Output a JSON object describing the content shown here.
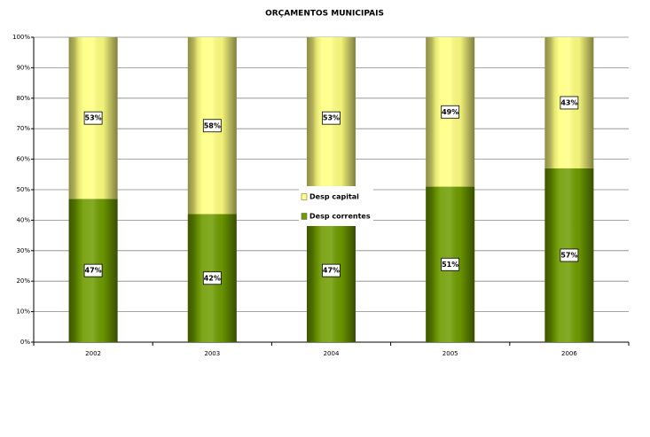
{
  "chart_data": {
    "type": "stacked_bar_100",
    "title": "ORÇAMENTOS MUNICIPAIS",
    "categories": [
      "2002",
      "2003",
      "2004",
      "2005",
      "2006"
    ],
    "series": [
      {
        "name": "Desp correntes",
        "color": "#6f9c00",
        "values": [
          47,
          42,
          47,
          51,
          57
        ],
        "value_labels": [
          "47%",
          "42%",
          "47%",
          "51%",
          "57%"
        ]
      },
      {
        "name": "Desp capital",
        "color": "#ffff80",
        "values": [
          53,
          58,
          53,
          49,
          43
        ],
        "value_labels": [
          "53%",
          "58%",
          "53%",
          "49%",
          "43%"
        ]
      }
    ],
    "ylim": [
      0,
      100
    ],
    "yticks": [
      {
        "value": 0,
        "label": "0%"
      },
      {
        "value": 10,
        "label": "10%"
      },
      {
        "value": 20,
        "label": "20%"
      },
      {
        "value": 30,
        "label": "30%"
      },
      {
        "value": 40,
        "label": "40%"
      },
      {
        "value": 50,
        "label": "50%"
      },
      {
        "value": 60,
        "label": "60%"
      },
      {
        "value": 70,
        "label": "70%"
      },
      {
        "value": 80,
        "label": "80%"
      },
      {
        "value": 90,
        "label": "90%"
      },
      {
        "value": 100,
        "label": "100%"
      }
    ],
    "grid": true
  }
}
